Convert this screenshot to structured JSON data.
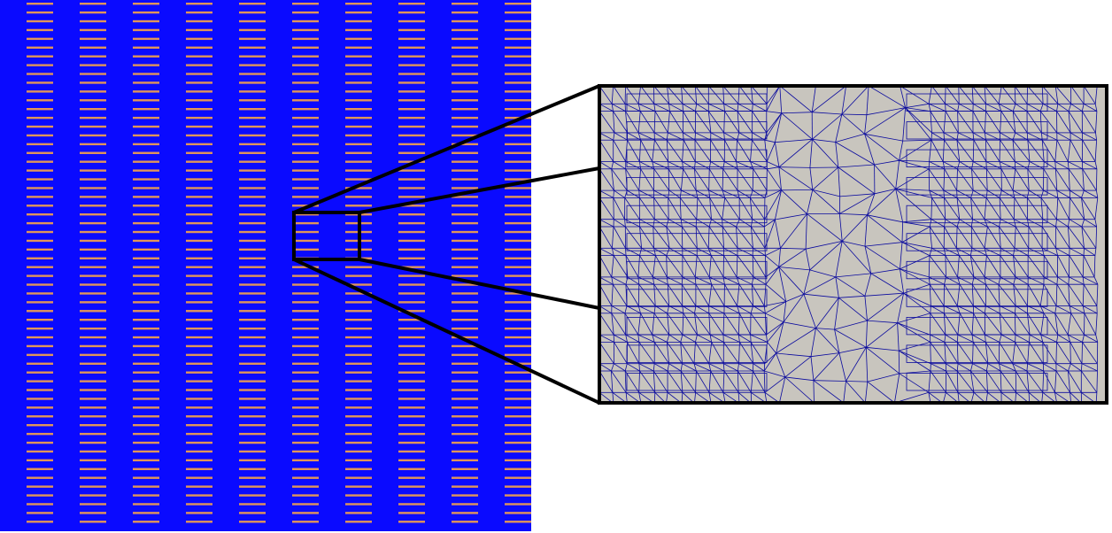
{
  "figure": {
    "overview_panel": {
      "background_color": "#0a0aff",
      "inclusion_color": "#e0955a",
      "column_count": 10,
      "rows_per_column": 60
    },
    "zoom_panel": {
      "background_color": "#c8c5be",
      "mesh_color": "#0a0a9e",
      "dense_region_count": 2,
      "strips_per_region": 11
    },
    "callout_color": "#000000"
  }
}
